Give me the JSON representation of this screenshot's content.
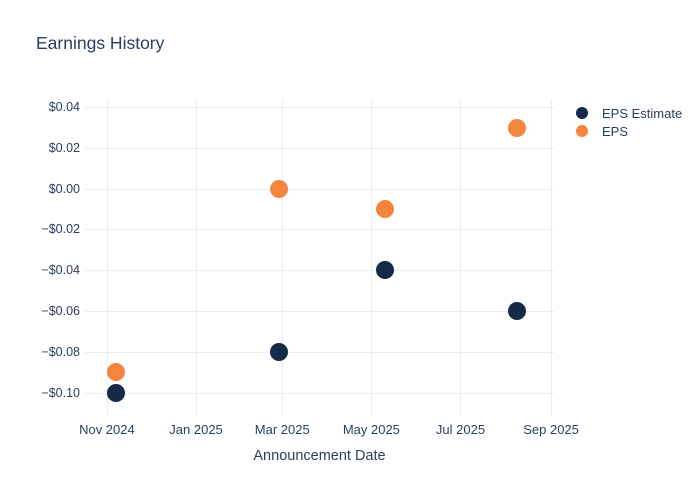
{
  "colors": {
    "navy": "#152A47",
    "orange": "#F5853D",
    "grid": "#E8EDF5",
    "text": "#2A3F5F",
    "background": "#FFFFFF"
  },
  "chart_data": {
    "type": "scatter",
    "title": "Earnings History",
    "xlabel": "Announcement Date",
    "ylabel": "",
    "grid": true,
    "legend_position": "right-top-outside",
    "x_range": [
      "2024-10-17",
      "2025-09-03"
    ],
    "y_range": [
      -0.111,
      0.044
    ],
    "x_ticks": [
      {
        "date": "2024-11-01",
        "label": "Nov 2024"
      },
      {
        "date": "2025-01-01",
        "label": "Jan 2025"
      },
      {
        "date": "2025-03-01",
        "label": "Mar 2025"
      },
      {
        "date": "2025-05-01",
        "label": "May 2025"
      },
      {
        "date": "2025-07-01",
        "label": "Jul 2025"
      },
      {
        "date": "2025-09-01",
        "label": "Sep 2025"
      }
    ],
    "y_ticks": [
      {
        "value": 0.04,
        "label": "$0.04"
      },
      {
        "value": 0.02,
        "label": "$0.02"
      },
      {
        "value": 0.0,
        "label": "$0.00"
      },
      {
        "value": -0.02,
        "label": "−$0.02"
      },
      {
        "value": -0.04,
        "label": "−$0.04"
      },
      {
        "value": -0.06,
        "label": "−$0.06"
      },
      {
        "value": -0.08,
        "label": "−$0.08"
      },
      {
        "value": -0.1,
        "label": "−$0.10"
      }
    ],
    "series": [
      {
        "name": "EPS Estimate",
        "color_key": "navy",
        "points": [
          {
            "date": "2024-11-07",
            "value": -0.1
          },
          {
            "date": "2025-02-27",
            "value": -0.08
          },
          {
            "date": "2025-05-10",
            "value": -0.04
          },
          {
            "date": "2025-08-09",
            "value": -0.06
          }
        ]
      },
      {
        "name": "EPS",
        "color_key": "orange",
        "points": [
          {
            "date": "2024-11-07",
            "value": -0.09
          },
          {
            "date": "2025-02-27",
            "value": 0.0
          },
          {
            "date": "2025-05-10",
            "value": -0.01
          },
          {
            "date": "2025-08-09",
            "value": 0.03
          }
        ]
      }
    ]
  }
}
